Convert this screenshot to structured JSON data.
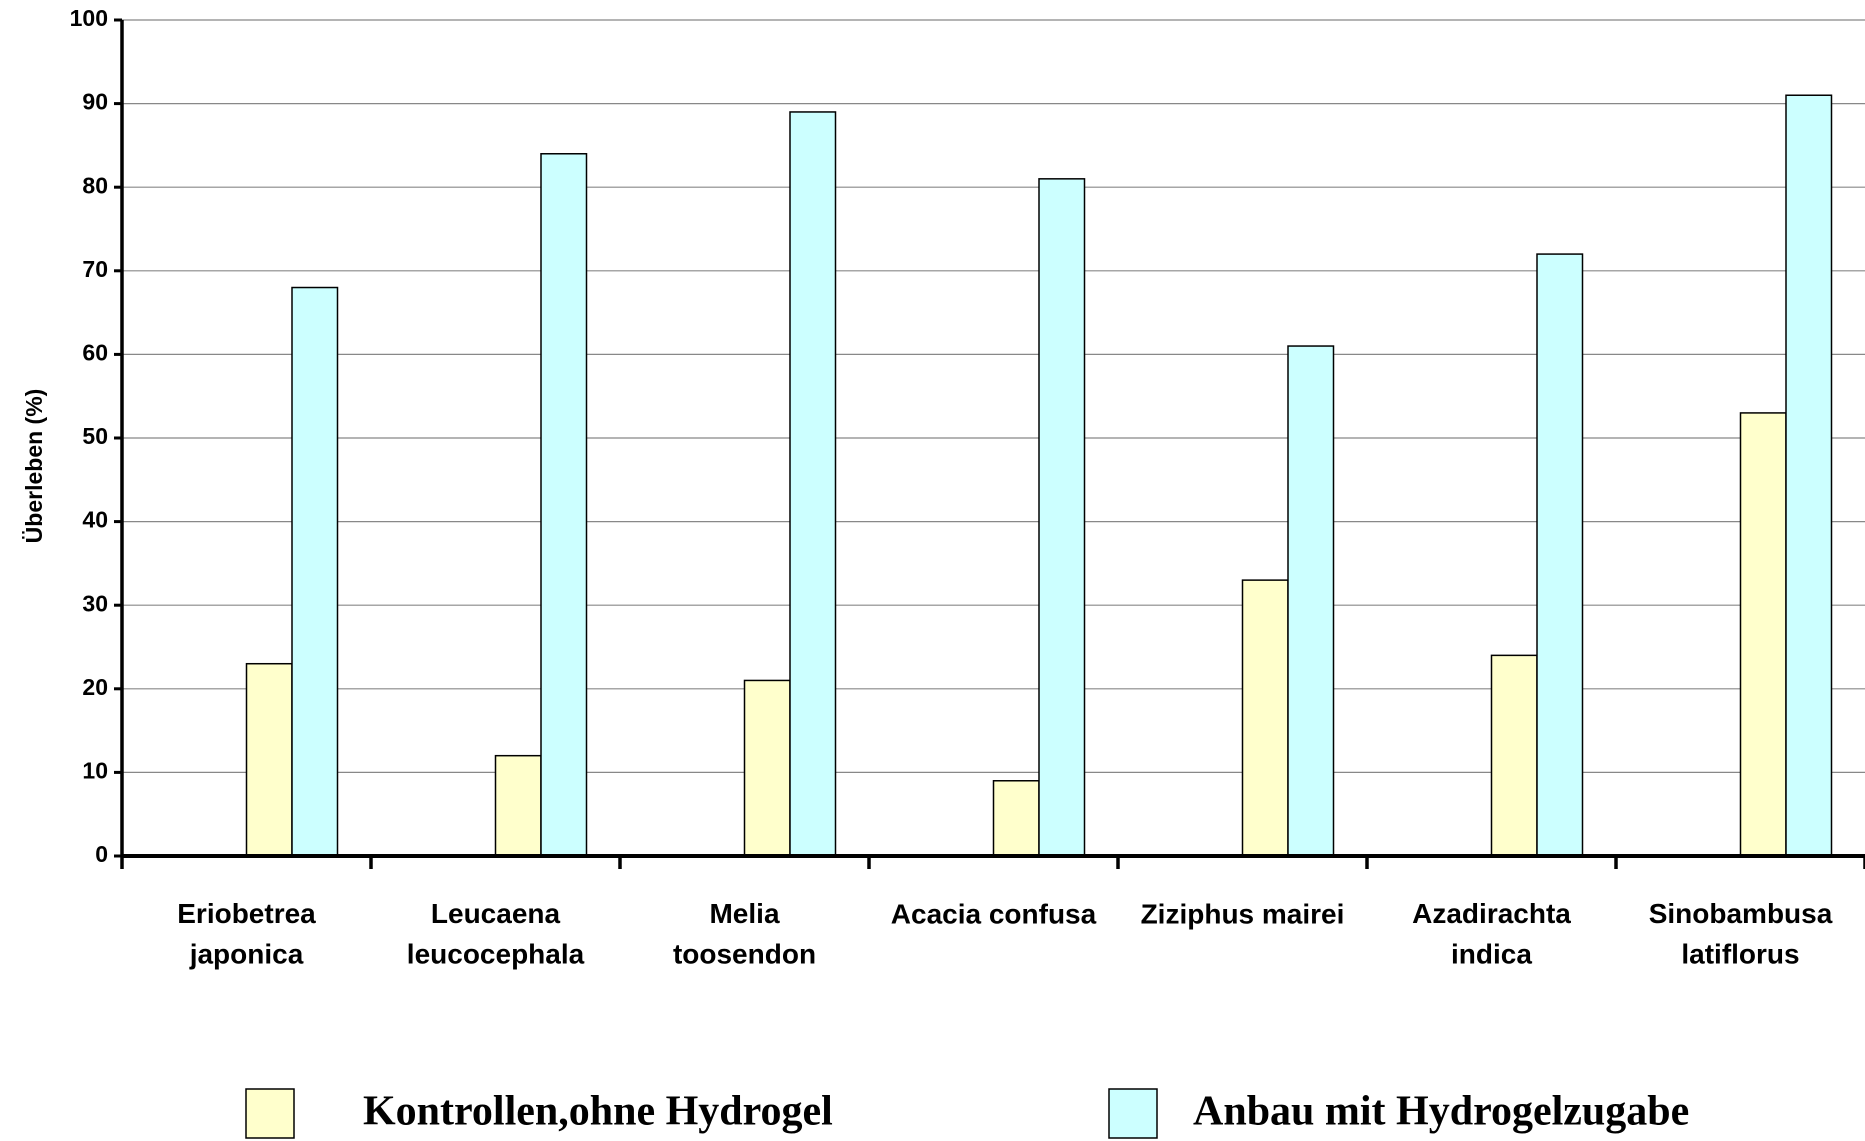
{
  "chart_data": {
    "type": "bar",
    "y_label": "Überleben (%)",
    "categories": [
      "Eriobetrea\njaponica",
      "Leucaena\nleucocephala",
      "Melia\ntoosendon",
      "Acacia confusa",
      "Ziziphus mairei",
      "Azadirachta\nindica",
      "Sinobambusa\nlatiflorus"
    ],
    "series": [
      {
        "name": "Kontrollen,ohne Hydrogel",
        "color": "#ffffcc",
        "values": [
          23,
          12,
          21,
          9,
          33,
          24,
          53
        ]
      },
      {
        "name": "Anbau mit Hydrogelzugabe",
        "color": "#ccffff",
        "values": [
          68,
          84,
          89,
          81,
          61,
          72,
          91
        ]
      }
    ],
    "ylim": [
      0,
      100
    ],
    "yticks": [
      0,
      10,
      20,
      30,
      40,
      50,
      60,
      70,
      80,
      90,
      100
    ],
    "grid": true,
    "legend": "bottom"
  }
}
